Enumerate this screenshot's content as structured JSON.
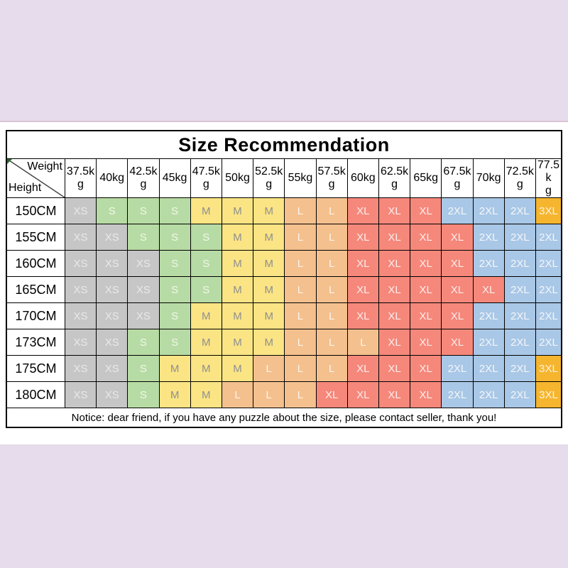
{
  "page": {
    "background_color": "#e7dcec",
    "panel_color": "#ffffff"
  },
  "chart_data": {
    "type": "table",
    "title": "Size Recommendation",
    "corner": {
      "top_right_label": "Weight",
      "bottom_left_label": "Height"
    },
    "weight_headers": [
      "37.5kg",
      "40kg",
      "42.5kg",
      "45kg",
      "47.5kg",
      "50kg",
      "52.5kg",
      "55kg",
      "57.5kg",
      "60kg",
      "62.5kg",
      "65kg",
      "67.5kg",
      "70kg",
      "72.5kg",
      "77.5kg"
    ],
    "rows": [
      {
        "height": "150CM",
        "sizes": [
          "XS",
          "S",
          "S",
          "S",
          "M",
          "M",
          "M",
          "L",
          "L",
          "XL",
          "XL",
          "XL",
          "2XL",
          "2XL",
          "2XL",
          "3XL"
        ]
      },
      {
        "height": "155CM",
        "sizes": [
          "XS",
          "XS",
          "S",
          "S",
          "S",
          "M",
          "M",
          "L",
          "L",
          "XL",
          "XL",
          "XL",
          "XL",
          "2XL",
          "2XL",
          "2XL"
        ]
      },
      {
        "height": "160CM",
        "sizes": [
          "XS",
          "XS",
          "XS",
          "S",
          "S",
          "M",
          "M",
          "L",
          "L",
          "XL",
          "XL",
          "XL",
          "XL",
          "2XL",
          "2XL",
          "2XL"
        ]
      },
      {
        "height": "165CM",
        "sizes": [
          "XS",
          "XS",
          "XS",
          "S",
          "S",
          "M",
          "M",
          "L",
          "L",
          "XL",
          "XL",
          "XL",
          "XL",
          "XL",
          "2XL",
          "2XL"
        ]
      },
      {
        "height": "170CM",
        "sizes": [
          "XS",
          "XS",
          "XS",
          "S",
          "M",
          "M",
          "M",
          "L",
          "L",
          "XL",
          "XL",
          "XL",
          "XL",
          "2XL",
          "2XL",
          "2XL"
        ]
      },
      {
        "height": "173CM",
        "sizes": [
          "XS",
          "XS",
          "S",
          "S",
          "M",
          "M",
          "M",
          "L",
          "L",
          "L",
          "XL",
          "XL",
          "XL",
          "2XL",
          "2XL",
          "2XL"
        ]
      },
      {
        "height": "175CM",
        "sizes": [
          "XS",
          "XS",
          "S",
          "M",
          "M",
          "M",
          "L",
          "L",
          "L",
          "XL",
          "XL",
          "XL",
          "2XL",
          "2XL",
          "2XL",
          "3XL"
        ]
      },
      {
        "height": "180CM",
        "sizes": [
          "XS",
          "XS",
          "S",
          "M",
          "M",
          "L",
          "L",
          "L",
          "XL",
          "XL",
          "XL",
          "XL",
          "2XL",
          "2XL",
          "2XL",
          "3XL"
        ]
      }
    ],
    "size_colors": {
      "XS": {
        "bg": "#c6c6c6",
        "text": "#e9e9e9"
      },
      "S": {
        "bg": "#b7dba4",
        "text": "#f0f7ea"
      },
      "M": {
        "bg": "#fae484",
        "text": "#8f8f8f"
      },
      "L": {
        "bg": "#f3c08e",
        "text": "#fdf4ea"
      },
      "XL": {
        "bg": "#f5887b",
        "text": "#fdedeb"
      },
      "2XL": {
        "bg": "#a9c7e6",
        "text": "#f3f7fb"
      },
      "3XL": {
        "bg": "#f6b52f",
        "text": "#fdf3de"
      }
    },
    "notice": "Notice: dear friend, if you have any puzzle about the size, please contact seller, thank you!"
  }
}
